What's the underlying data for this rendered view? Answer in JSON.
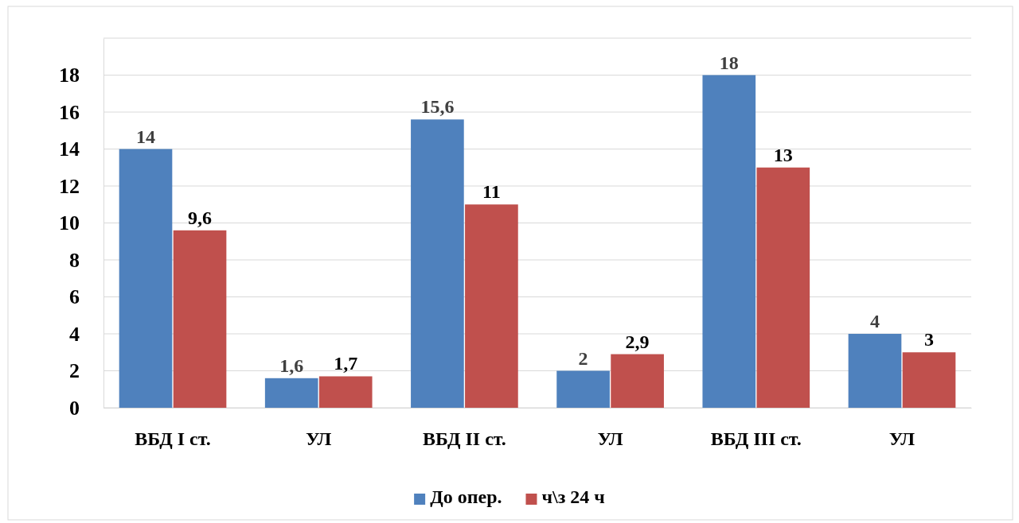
{
  "chart_data": {
    "type": "bar",
    "categories": [
      "ВБД I ст.",
      "УЛ",
      "ВБД II ст.",
      "УЛ",
      "ВБД III ст.",
      "УЛ"
    ],
    "series": [
      {
        "name": "До опер.",
        "color": "#4f81bd",
        "values": [
          14,
          1.6,
          15.6,
          2,
          18,
          4
        ],
        "value_labels": [
          "14",
          "1,6",
          "15,6",
          "2",
          "18",
          "4"
        ]
      },
      {
        "name": "ч\\з 24 ч",
        "color": "#c0504d",
        "values": [
          9.6,
          1.7,
          11,
          2.9,
          13,
          3
        ],
        "value_labels": [
          "9,6",
          "1,7",
          "11",
          "2,9",
          "13",
          "3"
        ]
      }
    ],
    "ylim": [
      0,
      20
    ],
    "yticks": [
      0,
      2,
      4,
      6,
      8,
      10,
      12,
      14,
      16,
      18,
      {
        "value": 20,
        "label": null
      }
    ],
    "grid": "y",
    "legend": "bottom"
  }
}
